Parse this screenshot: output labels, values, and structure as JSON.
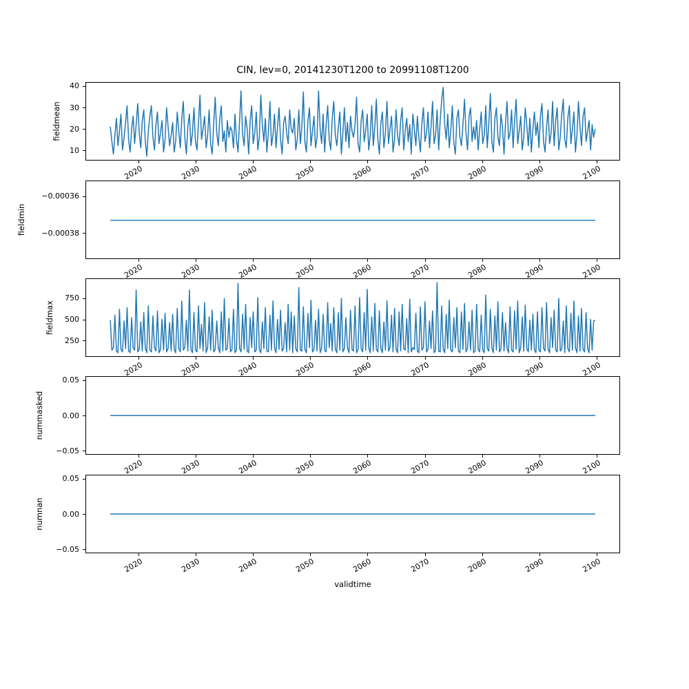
{
  "figure": {
    "title": "CIN, lev=0, 20141230T1200 to 20991108T1200",
    "xlabel": "validtime",
    "line_color": "#1f77b4",
    "background_color": "#ffffff",
    "text_color": "#000000",
    "xlim": [
      2010.75,
      2104.1
    ],
    "x_tick_years": [
      2020,
      2030,
      2040,
      2050,
      2060,
      2070,
      2080,
      2090,
      2100
    ],
    "x_tick_labels": [
      "2020",
      "2030",
      "2040",
      "2050",
      "2060",
      "2070",
      "2080",
      "2090",
      "2100"
    ]
  },
  "chart_data": [
    {
      "type": "line",
      "name": "fieldmean",
      "ylabel": "fieldmean",
      "ylim": [
        5.3,
        41.9
      ],
      "yticks": [
        40,
        30,
        20,
        10
      ],
      "ytick_labels": [
        "40",
        "30",
        "20",
        "10"
      ],
      "x_start": 2014.99,
      "x_end": 2099.86,
      "values": [
        21,
        14,
        8,
        17,
        25,
        12,
        19,
        27,
        10,
        16,
        23,
        31,
        15,
        9,
        20,
        26,
        13,
        22,
        32,
        18,
        11,
        24,
        29,
        14,
        7,
        19,
        26,
        31,
        16,
        10,
        22,
        28,
        13,
        18,
        24,
        9,
        15,
        30,
        21,
        12,
        17,
        23,
        9,
        14,
        28,
        19,
        11,
        25,
        33,
        16,
        8,
        21,
        27,
        12,
        18,
        30,
        14,
        10,
        23,
        36,
        15,
        20,
        26,
        11,
        17,
        29,
        13,
        8,
        22,
        35,
        18,
        12,
        25,
        31,
        14,
        19,
        9,
        24,
        16,
        21,
        19,
        11,
        27,
        15,
        9,
        23,
        38,
        17,
        12,
        26,
        20,
        8,
        24,
        31,
        13,
        18,
        28,
        10,
        16,
        36,
        22,
        14,
        25,
        9,
        19,
        33,
        12,
        17,
        27,
        11,
        21,
        30,
        15,
        8,
        23,
        26,
        18,
        13,
        29,
        20,
        18,
        25,
        10,
        15,
        29,
        13,
        21,
        37.5,
        14,
        9,
        24,
        30,
        12,
        19,
        26,
        11,
        16,
        38,
        20,
        13,
        27,
        9,
        22,
        31,
        15,
        10,
        25,
        33,
        17,
        12,
        21,
        28,
        8,
        18,
        30,
        14,
        23,
        11,
        26,
        19,
        16,
        22,
        35,
        13,
        9,
        24,
        29,
        14,
        19,
        27,
        10,
        17,
        31,
        12,
        21,
        34,
        15,
        8,
        23,
        28,
        11,
        18,
        33,
        13,
        20,
        26,
        9,
        15,
        29,
        17,
        12,
        24,
        30,
        10,
        19,
        25,
        14,
        22,
        8,
        27,
        20,
        12,
        26,
        16,
        9,
        23,
        30,
        14,
        18,
        28,
        11,
        21,
        33,
        13,
        17,
        29,
        10,
        24,
        34,
        39.7,
        22,
        15,
        27,
        11,
        19,
        31,
        13,
        8,
        25,
        29,
        16,
        12,
        22,
        34,
        18,
        10,
        26,
        30,
        14,
        21,
        15,
        24,
        10,
        20,
        28,
        13,
        17,
        31,
        11,
        22,
        36.8,
        14,
        9,
        25,
        30,
        16,
        12,
        27,
        21,
        8,
        23,
        33,
        15,
        18,
        29,
        11,
        24,
        34,
        13,
        19,
        26,
        10,
        16,
        30,
        22,
        12,
        25,
        9,
        20,
        28,
        17,
        23,
        11,
        26,
        32,
        14,
        9,
        21,
        29,
        13,
        18,
        33,
        12,
        24,
        30,
        10,
        16,
        27,
        34,
        15,
        11,
        25,
        31,
        13,
        20,
        28,
        9,
        17,
        33,
        21,
        12,
        26,
        30,
        14,
        19,
        24,
        10,
        22,
        16,
        20
      ]
    },
    {
      "type": "line",
      "name": "fieldmin",
      "ylabel": "fieldmin",
      "ylim": [
        -0.000394,
        -0.0003515
      ],
      "yticks": [
        -0.00036,
        -0.00038
      ],
      "ytick_labels": [
        "−0.00036",
        "−0.00038"
      ],
      "x_start": 2014.99,
      "x_end": 2099.86,
      "values": [
        -0.000373,
        -0.000373
      ]
    },
    {
      "type": "line",
      "name": "fieldmax",
      "ylabel": "fieldmax",
      "ylim": [
        58,
        982
      ],
      "yticks": [
        750,
        500,
        250
      ],
      "ytick_labels": [
        "750",
        "500",
        "250"
      ],
      "x_start": 2014.99,
      "x_end": 2099.86,
      "values": [
        490,
        130,
        160,
        550,
        120,
        100,
        620,
        140,
        110,
        480,
        150,
        640,
        120,
        100,
        520,
        160,
        130,
        850,
        110,
        140,
        470,
        120,
        580,
        150,
        100,
        660,
        130,
        110,
        540,
        160,
        120,
        600,
        100,
        140,
        500,
        130,
        570,
        110,
        150,
        460,
        120,
        560,
        140,
        100,
        630,
        150,
        110,
        720,
        130,
        160,
        490,
        120,
        850,
        140,
        100,
        580,
        130,
        110,
        660,
        150,
        440,
        120,
        700,
        100,
        160,
        530,
        130,
        610,
        110,
        140,
        480,
        160,
        100,
        590,
        120,
        750,
        130,
        150,
        510,
        110,
        140,
        620,
        100,
        130,
        930,
        150,
        110,
        560,
        140,
        680,
        120,
        100,
        520,
        160,
        590,
        110,
        130,
        760,
        140,
        100,
        470,
        150,
        640,
        120,
        110,
        550,
        130,
        720,
        160,
        100,
        500,
        140,
        610,
        120,
        150,
        460,
        110,
        680,
        130,
        590,
        100,
        540,
        150,
        110,
        880,
        130,
        120,
        650,
        140,
        100,
        570,
        160,
        730,
        110,
        140,
        490,
        120,
        620,
        100,
        150,
        560,
        130,
        110,
        700,
        160,
        450,
        120,
        640,
        140,
        100,
        580,
        130,
        750,
        110,
        150,
        520,
        160,
        100,
        610,
        140,
        120,
        660,
        100,
        140,
        760,
        150,
        110,
        580,
        130,
        860,
        160,
        100,
        530,
        120,
        690,
        140,
        110,
        600,
        150,
        100,
        470,
        130,
        720,
        120,
        160,
        550,
        110,
        630,
        140,
        100,
        590,
        120,
        680,
        150,
        130,
        510,
        100,
        740,
        110,
        160,
        140,
        570,
        120,
        100,
        650,
        130,
        160,
        710,
        110,
        140,
        480,
        150,
        600,
        100,
        130,
        940,
        120,
        110,
        660,
        140,
        100,
        560,
        150,
        730,
        130,
        110,
        520,
        160,
        640,
        120,
        100,
        590,
        140,
        690,
        110,
        150,
        470,
        130,
        610,
        100,
        120,
        680,
        140,
        110,
        550,
        130,
        100,
        790,
        150,
        120,
        620,
        160,
        100,
        540,
        130,
        710,
        110,
        140,
        580,
        120,
        460,
        150,
        100,
        650,
        130,
        110,
        600,
        140,
        720,
        100,
        160,
        530,
        120,
        670,
        150,
        110,
        490,
        130,
        560,
        140,
        100,
        590,
        130,
        110,
        640,
        150,
        120,
        700,
        140,
        100,
        520,
        160,
        610,
        130,
        110,
        750,
        120,
        140,
        480,
        100,
        660,
        150,
        110,
        570,
        130,
        720,
        160,
        100,
        540,
        120,
        630,
        140,
        110,
        580,
        150,
        100,
        500,
        130,
        480,
        490
      ]
    },
    {
      "type": "line",
      "name": "nummasked",
      "ylabel": "nummasked",
      "ylim": [
        -0.0555,
        0.0555
      ],
      "yticks": [
        0.05,
        0,
        -0.05
      ],
      "ytick_labels": [
        "0.05",
        "0.00",
        "−0.05"
      ],
      "x_start": 2014.99,
      "x_end": 2099.86,
      "values": [
        0,
        0
      ]
    },
    {
      "type": "line",
      "name": "numnan",
      "ylabel": "numnan",
      "ylim": [
        -0.0555,
        0.0555
      ],
      "yticks": [
        0.05,
        0,
        -0.05
      ],
      "ytick_labels": [
        "0.05",
        "0.00",
        "−0.05"
      ],
      "x_start": 2014.99,
      "x_end": 2099.86,
      "values": [
        0,
        0
      ]
    }
  ]
}
